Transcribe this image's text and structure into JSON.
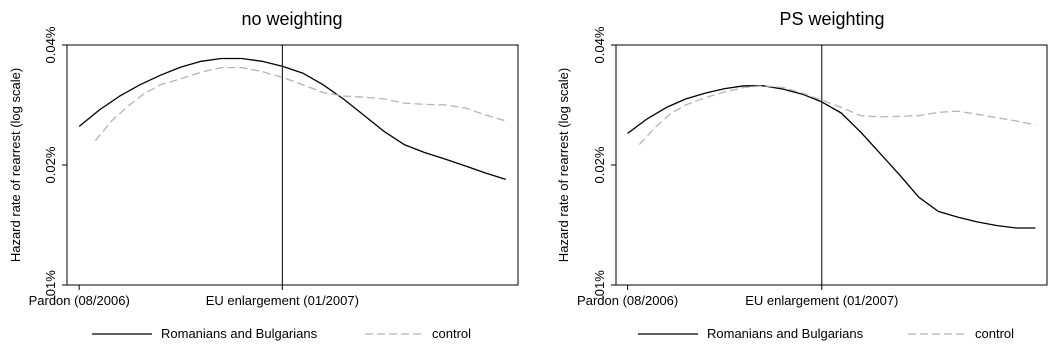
{
  "chart_data": [
    {
      "type": "line",
      "title": "no weighting",
      "ylabel": "Hazard rate of rearrest (log scale)",
      "yscale": "log",
      "ylim": [
        0.0001,
        0.0004
      ],
      "yticks": [
        {
          "value": 0.0004,
          "label": "0.04%"
        },
        {
          "value": 0.0002,
          "label": "0.02%"
        },
        {
          "value": 0.0001,
          "label": ".01%"
        }
      ],
      "xticks": [
        {
          "value": 0,
          "label": "Pardon (08/2006)"
        },
        {
          "value": 5,
          "label": "EU enlargement (01/2007)"
        }
      ],
      "xlim": [
        -0.3,
        10.8
      ],
      "vline": 5,
      "series": [
        {
          "name": "Romanians and Bulgarians",
          "color": "#000000",
          "dash": "solid",
          "x": [
            0,
            0.5,
            1,
            1.5,
            2,
            2.5,
            3,
            3.5,
            4,
            4.5,
            5,
            5.5,
            6,
            6.5,
            7,
            7.5,
            8,
            8.5,
            9,
            9.5,
            10,
            10.5
          ],
          "y": [
            0.00025,
            0.000275,
            0.000298,
            0.000318,
            0.000336,
            0.000352,
            0.000364,
            0.00037,
            0.00037,
            0.000364,
            0.000354,
            0.00034,
            0.000318,
            0.000293,
            0.000267,
            0.000243,
            0.000225,
            0.000215,
            0.000207,
            0.000199,
            0.000191,
            0.000184
          ]
        },
        {
          "name": "control",
          "color": "#b4b4b4",
          "dash": "dashed",
          "x": [
            0.4,
            0.8,
            1.2,
            1.6,
            2,
            2.5,
            3,
            3.5,
            4,
            4.5,
            5,
            5.5,
            6,
            6.5,
            7,
            7.5,
            8,
            8.5,
            9,
            9.5,
            10,
            10.5
          ],
          "y": [
            0.00023,
            0.000258,
            0.000281,
            0.000302,
            0.000318,
            0.000329,
            0.000342,
            0.000351,
            0.000351,
            0.000343,
            0.000332,
            0.000318,
            0.000304,
            0.000298,
            0.000296,
            0.000293,
            0.000286,
            0.000284,
            0.000283,
            0.000278,
            0.000267,
            0.000258
          ]
        }
      ]
    },
    {
      "type": "line",
      "title": "PS weighting",
      "ylabel": "Hazard rate of rearrest (log scale)",
      "yscale": "log",
      "ylim": [
        0.0001,
        0.0004
      ],
      "yticks": [
        {
          "value": 0.0004,
          "label": "0.04%"
        },
        {
          "value": 0.0002,
          "label": "0.02%"
        },
        {
          "value": 0.0001,
          "label": ".01%"
        }
      ],
      "xticks": [
        {
          "value": 0,
          "label": "Pardon (08/2006)"
        },
        {
          "value": 5,
          "label": "EU enlargement (01/2007)"
        }
      ],
      "xlim": [
        -0.3,
        10.8
      ],
      "vline": 5,
      "series": [
        {
          "name": "Romanians and Bulgarians",
          "color": "#000000",
          "dash": "solid",
          "x": [
            0,
            0.5,
            1,
            1.5,
            2,
            2.5,
            3,
            3.5,
            4,
            4.5,
            5,
            5.5,
            6,
            6.5,
            7,
            7.5,
            8,
            8.5,
            9,
            9.5,
            10,
            10.5
          ],
          "y": [
            0.00024,
            0.000261,
            0.000279,
            0.000293,
            0.000303,
            0.000311,
            0.000316,
            0.000316,
            0.00031,
            0.000301,
            0.000288,
            0.00027,
            0.000242,
            0.000214,
            0.000189,
            0.000166,
            0.000153,
            0.000148,
            0.000144,
            0.000141,
            0.000139,
            0.000139
          ]
        },
        {
          "name": "control",
          "color": "#b4b4b4",
          "dash": "dashed",
          "x": [
            0.3,
            0.7,
            1.1,
            1.5,
            2,
            2.5,
            3,
            3.5,
            4,
            4.5,
            5,
            5.5,
            6,
            6.5,
            7,
            7.5,
            8,
            8.5,
            9,
            9.5,
            10,
            10.5
          ],
          "y": [
            0.000225,
            0.000248,
            0.000269,
            0.000283,
            0.000295,
            0.000305,
            0.000313,
            0.000316,
            0.000313,
            0.000303,
            0.000291,
            0.000279,
            0.000266,
            0.000264,
            0.000265,
            0.000266,
            0.000271,
            0.000273,
            0.000268,
            0.000263,
            0.000258,
            0.000252
          ]
        }
      ]
    }
  ]
}
